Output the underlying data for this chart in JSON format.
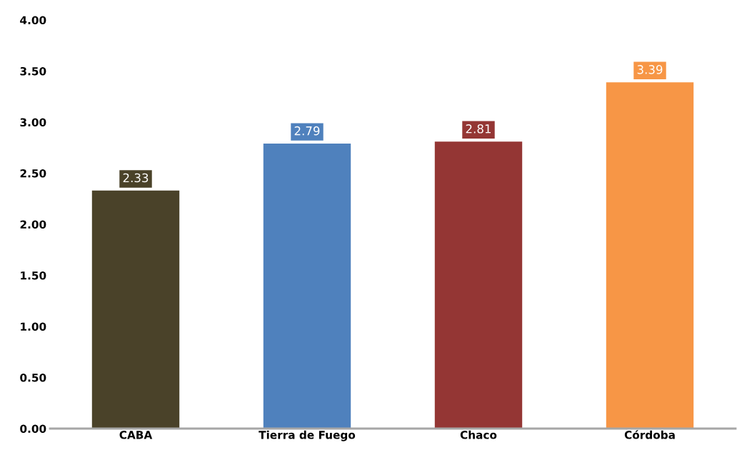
{
  "chart_data": {
    "type": "bar",
    "categories": [
      "CABA",
      "Tierra de Fuego",
      "Chaco",
      "Córdoba"
    ],
    "values": [
      2.33,
      2.79,
      2.81,
      3.39
    ],
    "colors": [
      "#4a4229",
      "#4f81bd",
      "#943634",
      "#f79646"
    ],
    "ylim": [
      0,
      4
    ],
    "yticks": [
      {
        "value": 0,
        "label": "0.00"
      },
      {
        "value": 0.5,
        "label": "0.50"
      },
      {
        "value": 1,
        "label": "1.00"
      },
      {
        "value": 1.5,
        "label": "1.50"
      },
      {
        "value": 2,
        "label": "2.00"
      },
      {
        "value": 2.5,
        "label": "2.50"
      },
      {
        "value": 3,
        "label": "3.00"
      },
      {
        "value": 3.5,
        "label": "3.50"
      },
      {
        "value": 4,
        "label": "4.00"
      }
    ],
    "data_labels": true,
    "grid": false,
    "legend": false
  }
}
